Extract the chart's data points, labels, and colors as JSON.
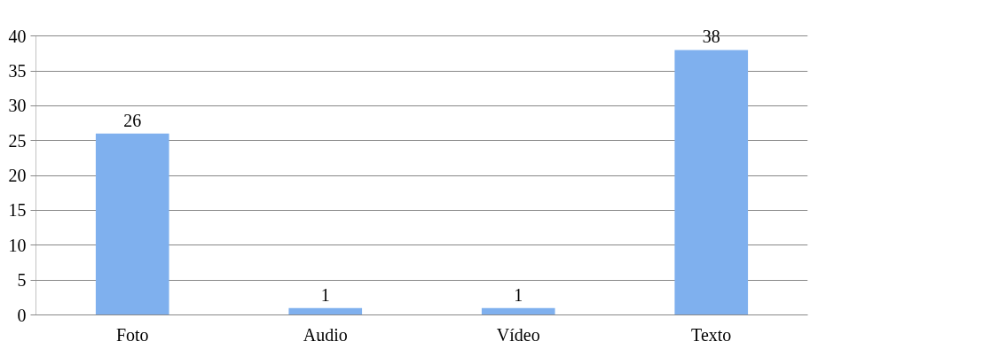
{
  "chart_data": {
    "type": "bar",
    "categories": [
      "Foto",
      "Audio",
      "Vídeo",
      "Texto"
    ],
    "series": [
      {
        "color": "#7fb0ee",
        "values": [
          26,
          1,
          1,
          38
        ]
      }
    ],
    "ylim": [
      0,
      40
    ],
    "yticks": [
      0,
      5,
      10,
      15,
      20,
      25,
      30,
      35,
      40
    ],
    "grid": "y",
    "data_labels": true
  }
}
